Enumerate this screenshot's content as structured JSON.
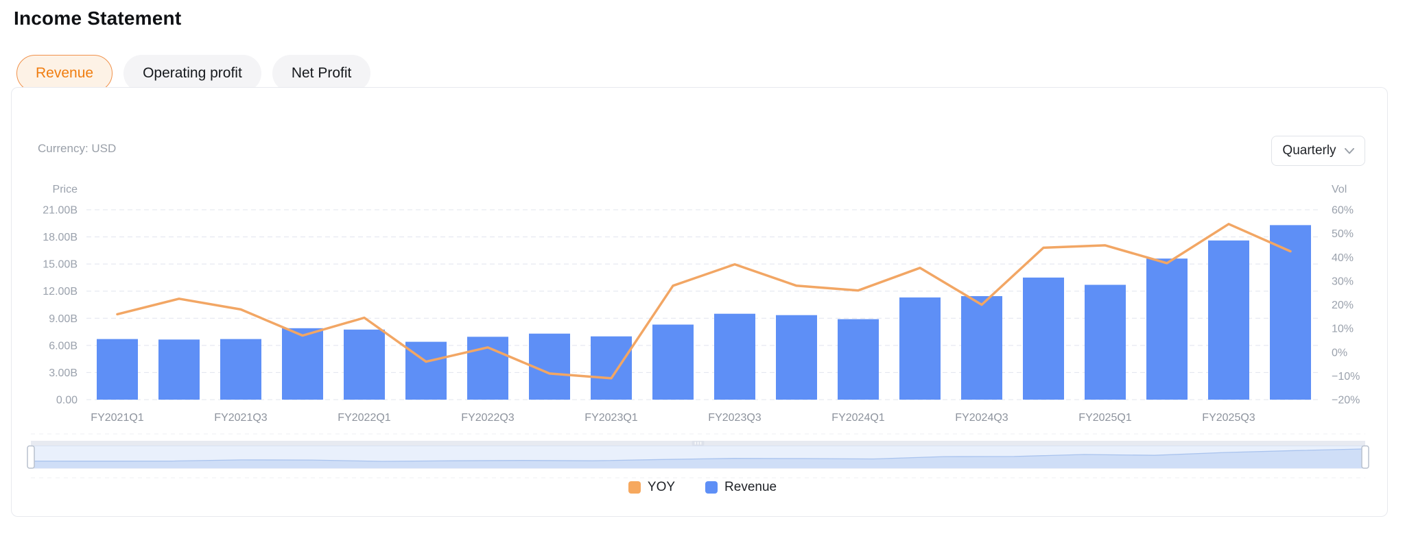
{
  "page": {
    "title": "Income Statement"
  },
  "tabs": [
    {
      "label": "Revenue",
      "active": true
    },
    {
      "label": "Operating profit",
      "active": false
    },
    {
      "label": "Net Profit",
      "active": false
    }
  ],
  "card": {
    "currency_label": "Currency: USD",
    "period_select": {
      "value": "Quarterly"
    },
    "legend": [
      {
        "label": "YOY",
        "color": "#f6a85e"
      },
      {
        "label": "Revenue",
        "color": "#5e8ff6"
      }
    ],
    "data_zoom_slider": {
      "selected_range_percent": [
        0,
        100
      ]
    }
  },
  "chart_data": {
    "type": "bar",
    "subtype": "dual-axis bar + line combo",
    "title": "",
    "categories": [
      "FY2021Q1",
      "FY2021Q2",
      "FY2021Q3",
      "FY2021Q4",
      "FY2022Q1",
      "FY2022Q2",
      "FY2022Q3",
      "FY2022Q4",
      "FY2023Q1",
      "FY2023Q2",
      "FY2023Q3",
      "FY2023Q4",
      "FY2024Q1",
      "FY2024Q2",
      "FY2024Q3",
      "FY2024Q4",
      "FY2025Q1",
      "FY2025Q2",
      "FY2025Q3",
      "FY2025Q4"
    ],
    "series": [
      {
        "name": "Revenue",
        "chart_type": "bar",
        "y_axis": "left",
        "unit": "billions USD",
        "color": "#5e8ff6",
        "values": [
          6.7,
          6.65,
          6.7,
          7.9,
          7.75,
          6.4,
          6.95,
          7.3,
          7.0,
          8.3,
          9.5,
          9.35,
          8.9,
          11.3,
          11.45,
          13.5,
          12.7,
          15.6,
          17.6,
          19.3
        ]
      },
      {
        "name": "YOY",
        "chart_type": "line",
        "y_axis": "right",
        "unit": "percent",
        "color": "#f2a664",
        "values": [
          16,
          22.5,
          18,
          7,
          14.5,
          -4,
          2,
          -9,
          -11,
          28,
          37,
          28,
          26,
          35.5,
          20,
          44,
          45,
          37.5,
          54,
          42.5
        ]
      }
    ],
    "left_axis": {
      "name": "Price",
      "min": 0,
      "max": 21,
      "tick_values": [
        0,
        3,
        6,
        9,
        12,
        15,
        18,
        21
      ],
      "tick_labels": [
        "0.00",
        "3.00B",
        "6.00B",
        "9.00B",
        "12.00B",
        "15.00B",
        "18.00B",
        "21.00B"
      ]
    },
    "right_axis": {
      "name": "Vol",
      "min": -20,
      "max": 60,
      "tick_values": [
        -20,
        -10,
        0,
        10,
        20,
        30,
        40,
        50,
        60
      ],
      "tick_labels": [
        "−20%",
        "−10%",
        "0%",
        "10%",
        "20%",
        "30%",
        "40%",
        "50%",
        "60%"
      ]
    },
    "x_axis": {
      "label_every": 2
    },
    "grid": "horizontal dashed",
    "legend_position": "bottom-center"
  }
}
